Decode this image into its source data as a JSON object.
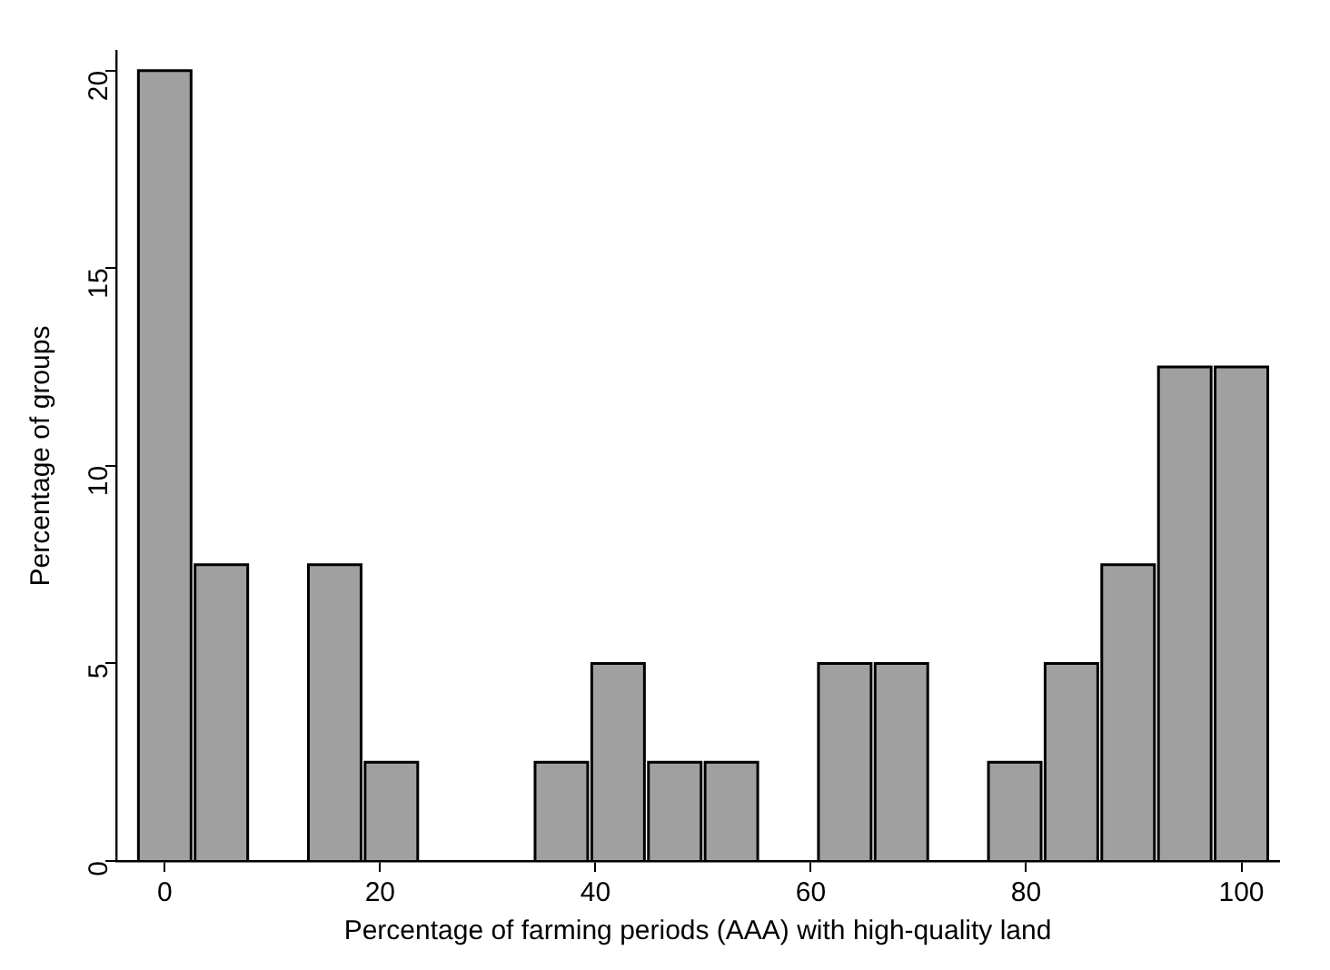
{
  "chart_data": {
    "type": "histogram",
    "xlabel": "Percentage of farming periods (AAA) with high-quality land",
    "ylabel": "Percentage of groups",
    "bins": [
      -2.63,
      2.63,
      7.89,
      13.16,
      18.42,
      23.68,
      28.95,
      34.21,
      39.47,
      44.74,
      50,
      55.26,
      60.53,
      65.79,
      71.05,
      76.32,
      81.58,
      86.84,
      92.11,
      97.37,
      102.63
    ],
    "values": [
      20,
      7.5,
      0,
      7.5,
      2.5,
      0,
      0,
      2.5,
      5,
      2.5,
      2.5,
      0,
      5,
      5,
      0,
      2.5,
      5,
      7.5,
      12.5,
      12.5
    ],
    "color": "#a0a0a0",
    "xlim": [
      -4.5,
      103.5
    ],
    "xticks": [
      0,
      20,
      40,
      60,
      80,
      100
    ],
    "ylim": [
      0,
      20.5
    ],
    "yticks": [
      0,
      5,
      10,
      15,
      20
    ],
    "grid": false,
    "legend": false
  }
}
